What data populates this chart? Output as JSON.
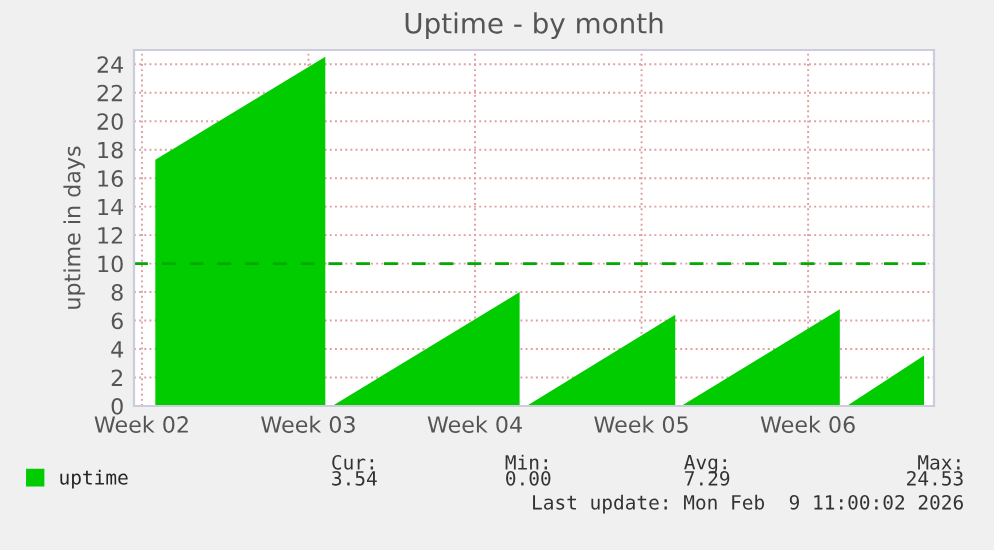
{
  "chart_data": {
    "type": "area",
    "title": "Uptime - by month",
    "ylabel": "uptime in days",
    "series": [
      {
        "name": "uptime",
        "color": "#00cc00",
        "x": [
          "2026-01-05T13:30",
          "2026-01-12T17:00",
          "2026-01-12T20:00",
          "2026-01-13T00:00",
          "2026-01-20T21:00",
          "2026-01-21T00:00",
          "2026-01-21T04:00",
          "2026-01-27T10:00",
          "2026-01-27T13:00",
          "2026-01-27T16:00",
          "2026-02-03T08:00",
          "2026-02-03T11:00",
          "2026-02-03T15:00",
          "2026-02-06T21:00"
        ],
        "values": [
          17.3,
          24.53,
          null,
          0,
          8.0,
          null,
          0,
          6.4,
          null,
          0,
          6.8,
          null,
          0,
          3.54
        ]
      }
    ],
    "xlim": [
      "2026-01-04T16:00",
      "2026-02-07T07:00"
    ],
    "xticks": [
      {
        "value": "2026-01-05",
        "label": "Week 02"
      },
      {
        "value": "2026-01-12",
        "label": "Week 03"
      },
      {
        "value": "2026-01-19",
        "label": "Week 04"
      },
      {
        "value": "2026-01-26",
        "label": "Week 05"
      },
      {
        "value": "2026-02-02",
        "label": "Week 06"
      }
    ],
    "ylim": [
      0,
      25
    ],
    "yticks": [
      0,
      2,
      4,
      6,
      8,
      10,
      12,
      14,
      16,
      18,
      20,
      22,
      24
    ],
    "ref_lines": [
      {
        "axis": "y",
        "value": 10,
        "color": "#00aa00",
        "line_style": "dashed"
      }
    ],
    "grid": true,
    "legend": "bottom",
    "annotations": [
      "Cur:",
      "Min:",
      "Avg:",
      "Max:",
      "3.54",
      "0.00",
      "7.29",
      "24.53",
      "Last update: Mon Feb  9 11:00:02 2026"
    ]
  }
}
